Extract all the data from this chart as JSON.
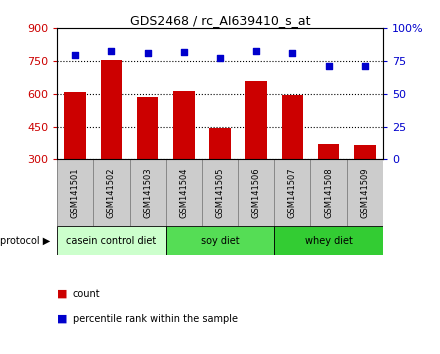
{
  "title": "GDS2468 / rc_AI639410_s_at",
  "samples": [
    "GSM141501",
    "GSM141502",
    "GSM141503",
    "GSM141504",
    "GSM141505",
    "GSM141506",
    "GSM141507",
    "GSM141508",
    "GSM141509"
  ],
  "counts": [
    607,
    754,
    584,
    614,
    443,
    658,
    593,
    370,
    367
  ],
  "percentile_ranks": [
    80,
    83,
    81,
    82,
    77,
    83,
    81,
    71,
    71
  ],
  "ylim_left": [
    300,
    900
  ],
  "yticks_left": [
    300,
    450,
    600,
    750,
    900
  ],
  "ylim_right": [
    0,
    100
  ],
  "yticks_right": [
    0,
    25,
    50,
    75,
    100
  ],
  "bar_color": "#cc0000",
  "dot_color": "#0000cc",
  "groups": [
    {
      "label": "casein control diet",
      "start": 0,
      "end": 3,
      "color": "#ccffcc"
    },
    {
      "label": "soy diet",
      "start": 3,
      "end": 6,
      "color": "#55dd55"
    },
    {
      "label": "whey diet",
      "start": 6,
      "end": 9,
      "color": "#33cc33"
    }
  ],
  "protocol_label": "protocol",
  "legend_count_label": "count",
  "legend_pct_label": "percentile rank within the sample",
  "background_color": "#ffffff",
  "plot_bg": "#ffffff",
  "tick_label_color_left": "#cc0000",
  "tick_label_color_right": "#0000cc",
  "sample_box_color": "#cccccc",
  "sample_box_edge": "#888888"
}
